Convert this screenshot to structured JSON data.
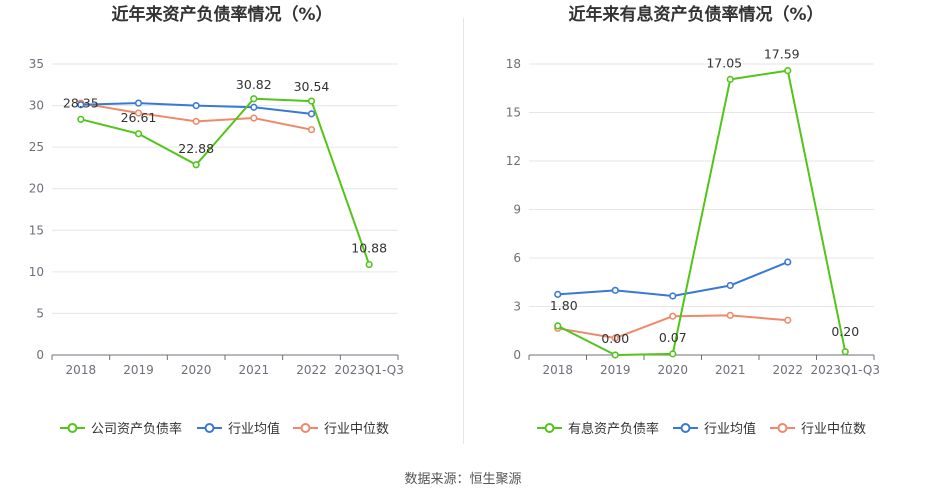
{
  "source": "数据来源：恒生聚源",
  "chart_data": [
    {
      "type": "line",
      "title": "近年来资产负债率情况（%）",
      "categories": [
        "2018",
        "2019",
        "2020",
        "2021",
        "2022",
        "2023Q1-Q3"
      ],
      "ylim": [
        0,
        35
      ],
      "yticks": [
        "0",
        "5",
        "10",
        "15",
        "20",
        "25",
        "30",
        "35"
      ],
      "grid": true,
      "legend_position": "bottom",
      "series": [
        {
          "name": "公司资产负债率",
          "color": "#52c41a",
          "values": [
            28.35,
            26.61,
            22.88,
            30.82,
            30.54,
            10.88
          ],
          "labels": [
            "28.35",
            "26.61",
            "22.88",
            "30.82",
            "30.54",
            "10.88"
          ]
        },
        {
          "name": "行业均值",
          "color": "#3a78d6",
          "values": [
            30.1,
            30.3,
            30.0,
            29.8,
            29.0,
            null
          ]
        },
        {
          "name": "行业中位数",
          "color": "#ee8a6a",
          "values": [
            30.3,
            29.1,
            28.1,
            28.5,
            27.1,
            null
          ]
        }
      ]
    },
    {
      "type": "line",
      "title": "近年来有息资产负债率情况（%）",
      "categories": [
        "2018",
        "2019",
        "2020",
        "2021",
        "2022",
        "2023Q1-Q3"
      ],
      "ylim": [
        0,
        18
      ],
      "yticks": [
        "0",
        "3",
        "6",
        "9",
        "12",
        "15",
        "18"
      ],
      "grid": true,
      "legend_position": "bottom",
      "series": [
        {
          "name": "有息资产负债率",
          "color": "#52c41a",
          "values": [
            1.8,
            0.0,
            0.07,
            17.05,
            17.59,
            0.2
          ],
          "labels": [
            "1.80",
            "0.00",
            "0.07",
            "17.05",
            "17.59",
            "0.20"
          ]
        },
        {
          "name": "行业均值",
          "color": "#3a78d6",
          "values": [
            3.75,
            4.0,
            3.65,
            4.3,
            5.75,
            null
          ]
        },
        {
          "name": "行业中位数",
          "color": "#ee8a6a",
          "values": [
            1.65,
            1.05,
            2.4,
            2.45,
            2.15,
            null
          ]
        }
      ]
    }
  ]
}
